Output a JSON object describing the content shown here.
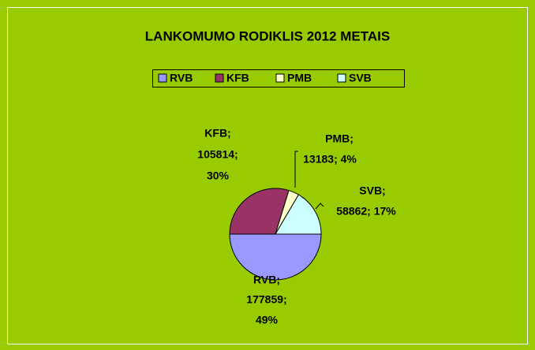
{
  "chart_data": {
    "type": "pie",
    "title": "LANKOMUMO RODIKLIS 2012 METAIS",
    "categories": [
      "RVB",
      "KFB",
      "PMB",
      "SVB"
    ],
    "values": [
      177859,
      105814,
      13183,
      58862
    ],
    "value_labels": [
      [
        "RVB;",
        "177859;",
        "49%"
      ],
      [
        "KFB;",
        "105814;",
        "30%"
      ],
      [
        "PMB;",
        "13183; 4%"
      ],
      [
        "SVB;",
        "58862; 17%"
      ]
    ],
    "colors": [
      "#9999ff",
      "#993366",
      "#ffffcc",
      "#ccffff"
    ],
    "legend": "top"
  }
}
